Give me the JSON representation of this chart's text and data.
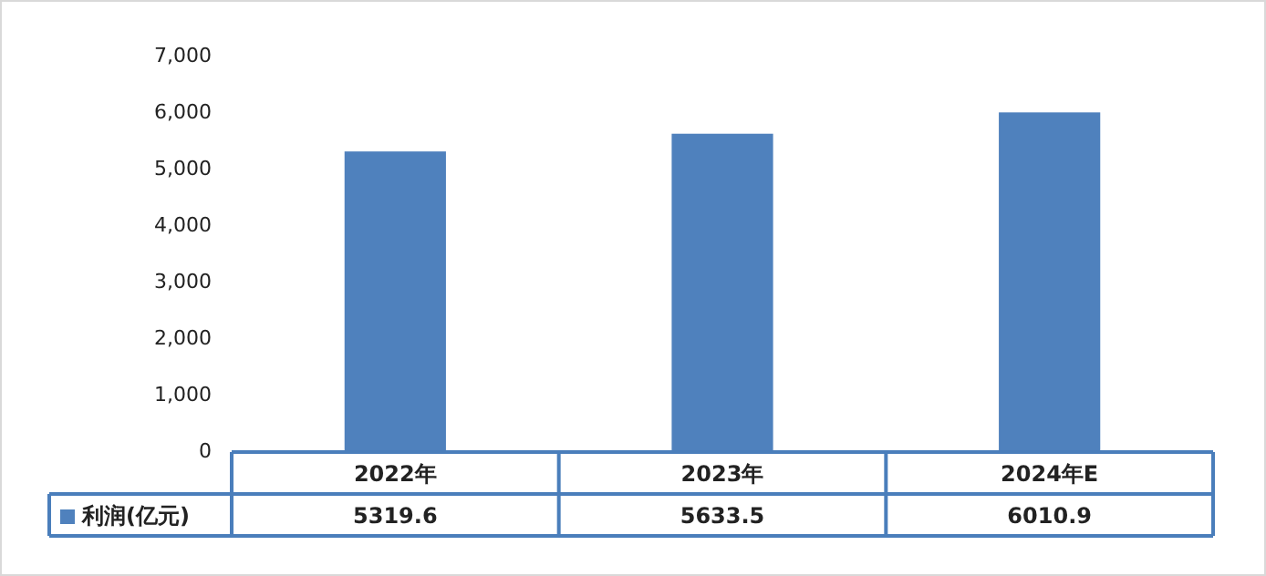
{
  "chart_data": {
    "type": "bar",
    "categories": [
      "2022年",
      "2023年",
      "2024年E"
    ],
    "series": [
      {
        "name": "利润(亿元)",
        "color": "#4f81bd",
        "values": [
          5319.6,
          5633.5,
          6010.9
        ]
      }
    ],
    "ylim": [
      0,
      7000
    ],
    "yticks": [
      0,
      {
        "value": 1000,
        "label": "1,000"
      },
      {
        "value": 2000,
        "label": "2,000"
      },
      {
        "value": 3000,
        "label": "3,000"
      },
      {
        "value": 4000,
        "label": "4,000"
      },
      {
        "value": 5000,
        "label": "5,000"
      },
      {
        "value": 6000,
        "label": "6,000"
      },
      {
        "value": 7000,
        "label": "7,000"
      }
    ],
    "data_labels": true,
    "legend": "bottom",
    "grid": false
  }
}
